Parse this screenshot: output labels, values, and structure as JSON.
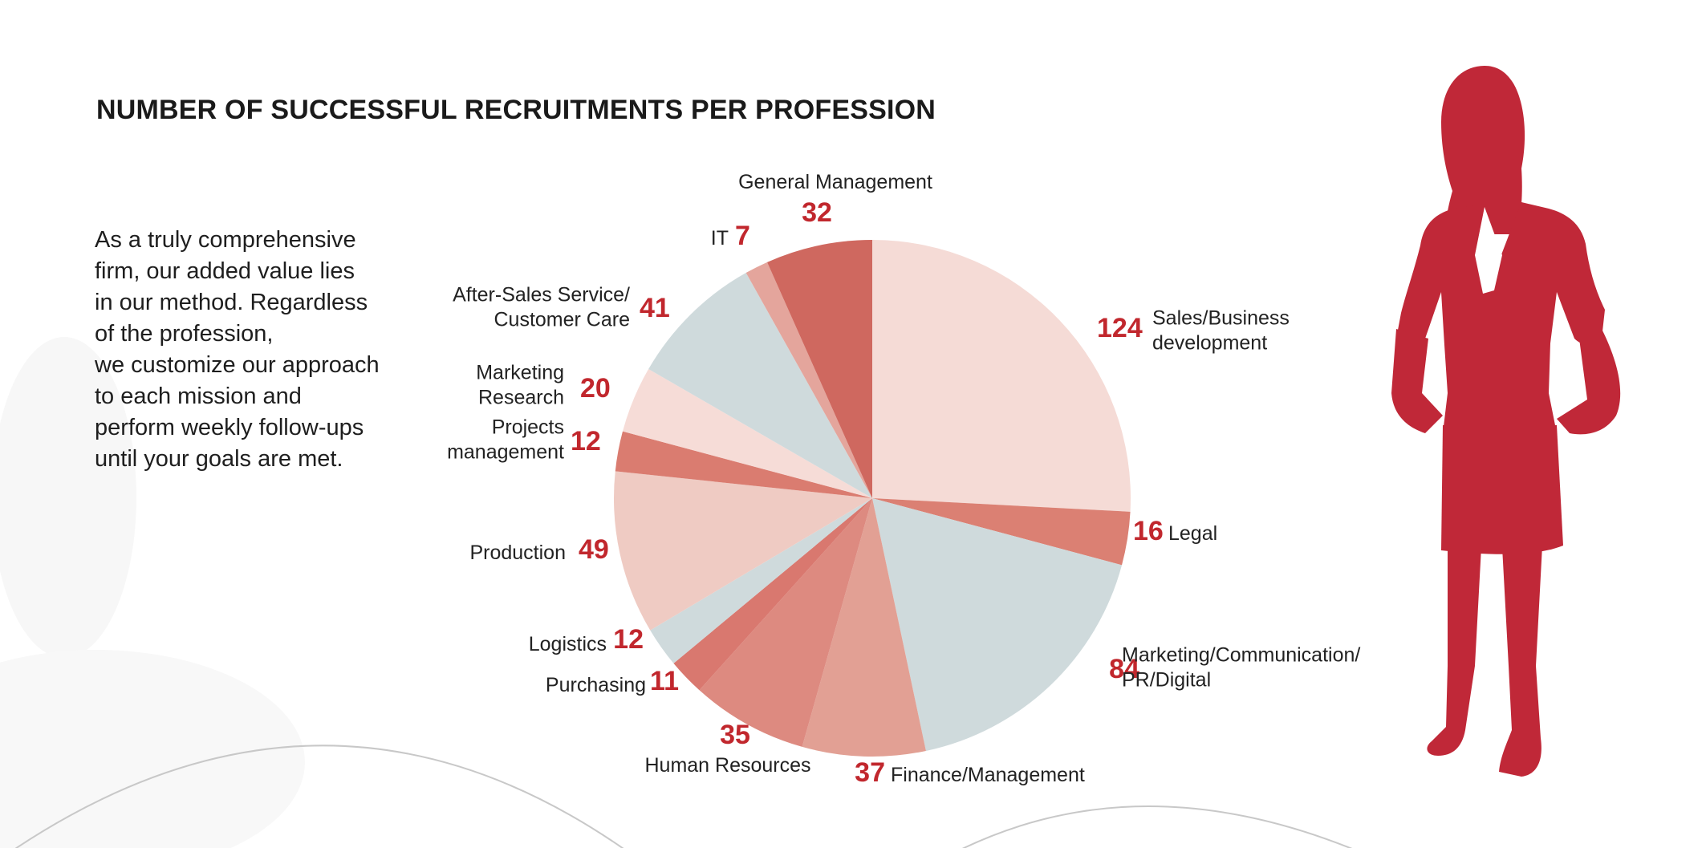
{
  "title": "NUMBER OF SUCCESSFUL RECRUITMENTS PER PROFESSION",
  "intro_lines": [
    "As a truly comprehensive",
    "firm, our added value lies",
    "in our method. Regardless",
    "of the profession,",
    "we customize our approach",
    "to each mission and",
    "perform weekly follow-ups",
    "until your goals are met."
  ],
  "colors": {
    "accent": "#c1272d",
    "silhouette": "#c02838",
    "pale_pink": "#f5dbd6",
    "grey_blue": "#cfdadc"
  },
  "illustration": {
    "icon": "businesswoman-silhouette-icon"
  },
  "chart_data": {
    "type": "pie",
    "title": "NUMBER OF SUCCESSFUL RECRUITMENTS PER PROFESSION",
    "start": "12 o'clock, clockwise",
    "slices": [
      {
        "label": [
          "Sales/Business",
          "development"
        ],
        "value": 124,
        "color": "#f5dbd6"
      },
      {
        "label": [
          "Legal"
        ],
        "value": 16,
        "color": "#db8073"
      },
      {
        "label": [
          "Marketing/Communication/",
          "PR/Digital"
        ],
        "value": 84,
        "color": "#cfdadc"
      },
      {
        "label": [
          "Finance/Management"
        ],
        "value": 37,
        "color": "#e2a094"
      },
      {
        "label": [
          "Human Resources"
        ],
        "value": 35,
        "color": "#dd8a80"
      },
      {
        "label": [
          "Purchasing"
        ],
        "value": 11,
        "color": "#d9786f"
      },
      {
        "label": [
          "Logistics"
        ],
        "value": 12,
        "color": "#cfdadc"
      },
      {
        "label": [
          "Production"
        ],
        "value": 49,
        "color": "#efcbc3"
      },
      {
        "label": [
          "Projects",
          "management"
        ],
        "value": 12,
        "color": "#da7c70"
      },
      {
        "label": [
          "Marketing",
          "Research"
        ],
        "value": 20,
        "color": "#f6dcd7"
      },
      {
        "label": [
          "After-Sales Service/",
          "Customer Care"
        ],
        "value": 41,
        "color": "#cfdadc"
      },
      {
        "label": [
          "IT"
        ],
        "value": 7,
        "color": "#e4a59c"
      },
      {
        "label": [
          "General Management"
        ],
        "value": 32,
        "color": "#cf685f"
      }
    ]
  }
}
